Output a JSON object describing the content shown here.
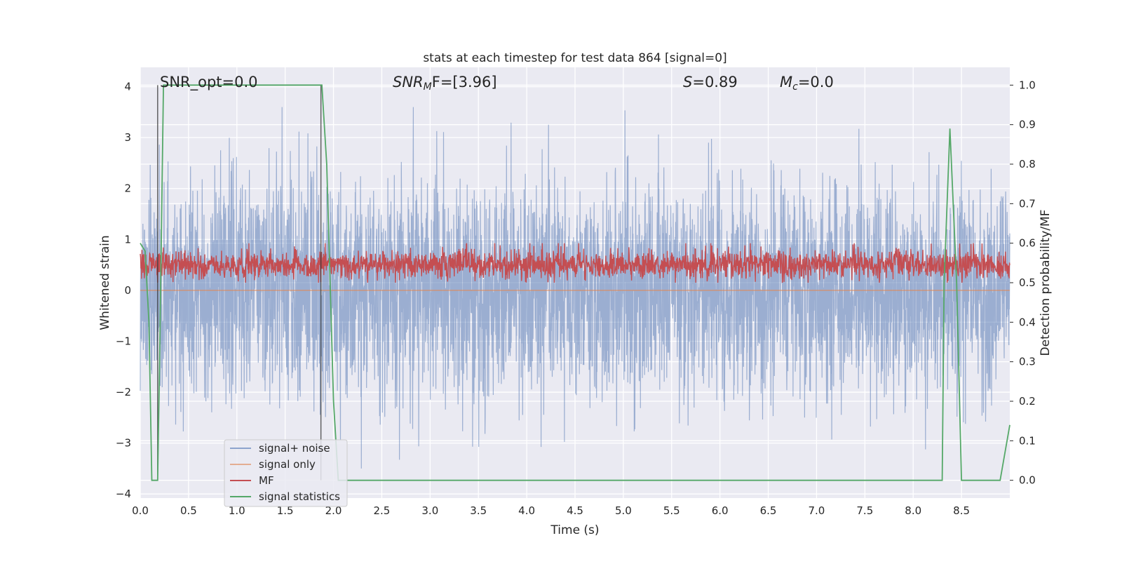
{
  "chart_data": {
    "type": "line",
    "title": "stats at each timestep for test data 864 [signal=0]",
    "xlabel": "Time (s)",
    "ylabel_left": "Whitened strain",
    "ylabel_right": "Detection probability/MF",
    "xlim": [
      0.0,
      9.0
    ],
    "ylim_left": [
      -4.08,
      4.38
    ],
    "ylim_right": [
      -0.045,
      1.045
    ],
    "x_ticks": [
      "0.0",
      "0.5",
      "1.0",
      "1.5",
      "2.0",
      "2.5",
      "3.0",
      "3.5",
      "4.0",
      "4.5",
      "5.0",
      "5.5",
      "6.0",
      "6.5",
      "7.0",
      "7.5",
      "8.0",
      "8.5"
    ],
    "y_ticks_left": [
      "4",
      "3",
      "2",
      "1",
      "0",
      "−1",
      "−2",
      "−3",
      "−4"
    ],
    "y_ticks_right": [
      "1.0",
      "0.9",
      "0.8",
      "0.7",
      "0.6",
      "0.5",
      "0.4",
      "0.3",
      "0.2",
      "0.1",
      "0.0"
    ],
    "grid": true,
    "legend_placement": "lower-left",
    "annotations": {
      "snr_opt": "SNR_opt=0.0",
      "snr_mf_italic": "SNR",
      "snr_mf_sub": "M",
      "snr_mf_rest": "F=[3.96]",
      "s_italic": "S",
      "s_rest": "=0.89",
      "mc_italic": "M",
      "mc_sub": "c",
      "mc_rest": "=0.0"
    },
    "series": [
      {
        "name": "signal+ noise",
        "axis": "left",
        "color": "#4c72b0",
        "alpha": 0.5,
        "description_values": "dense noise, amplitude mostly within ±2, peaks to about ±3.6"
      },
      {
        "name": "signal only",
        "axis": "left",
        "color": "#dd8452",
        "values_note": "flat at 0"
      },
      {
        "name": "MF",
        "axis": "right",
        "color": "#c44e52",
        "range": [
          0.5,
          0.6
        ]
      },
      {
        "name": "signal statistics",
        "axis": "right",
        "color": "#55a868",
        "x": [
          0.0,
          0.05,
          0.09,
          0.12,
          0.18,
          0.2,
          0.24,
          0.3,
          0.5,
          1.0,
          1.5,
          1.8,
          1.88,
          1.93,
          2.0,
          2.05,
          2.5,
          5.0,
          8.3,
          8.32,
          8.38,
          8.45,
          8.5,
          8.6,
          8.9,
          9.0
        ],
        "y": [
          0.6,
          0.58,
          0.4,
          0.0,
          0.0,
          0.3,
          1.0,
          1.0,
          1.0,
          1.0,
          1.0,
          1.0,
          1.0,
          0.8,
          0.2,
          0.0,
          0.0,
          0.0,
          0.0,
          0.5,
          0.89,
          0.5,
          0.0,
          0.0,
          0.0,
          0.14
        ]
      }
    ],
    "vertical_lines_x": [
      0.18,
      1.87
    ]
  },
  "legend": {
    "items": [
      {
        "label": "signal+ noise",
        "color": "#8da4cd"
      },
      {
        "label": "signal only",
        "color": "#dd8452"
      },
      {
        "label": "MF",
        "color": "#c44e52"
      },
      {
        "label": "signal statistics",
        "color": "#55a868"
      }
    ]
  }
}
